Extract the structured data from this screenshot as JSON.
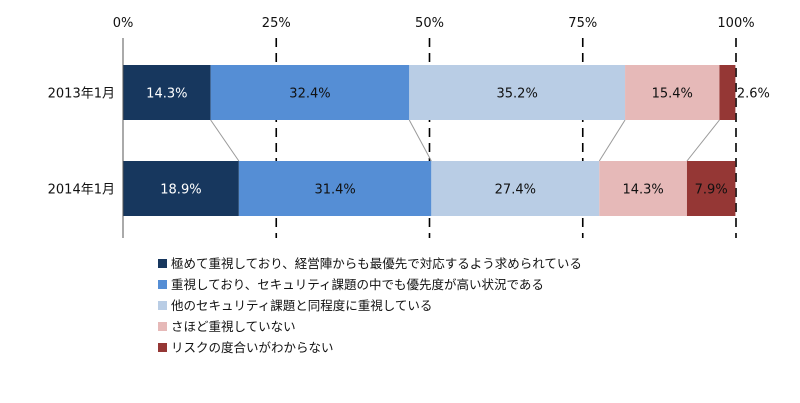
{
  "chart_data": {
    "type": "bar",
    "orientation": "horizontal",
    "stacked": true,
    "percent_stacked": true,
    "xlim": [
      0,
      100
    ],
    "x_ticks": [
      "0%",
      "25%",
      "50%",
      "75%",
      "100%"
    ],
    "grid": "dashed vertical",
    "legend_position": "bottom",
    "categories": [
      "2013年1月",
      "2014年1月"
    ],
    "series": [
      {
        "name": "極めて重視しており、経営陣からも最優先で対応するよう求められている",
        "color": "#17375e",
        "label_color": "#ffffff",
        "values": [
          14.3,
          18.9
        ]
      },
      {
        "name": "重視しており、セキュリティ課題の中でも優先度が高い状況である",
        "color": "#558ed5",
        "label_color": "#111111",
        "values": [
          32.4,
          31.4
        ]
      },
      {
        "name": "他のセキュリティ課題と同程度に重視している",
        "color": "#b9cde5",
        "label_color": "#111111",
        "values": [
          35.2,
          27.4
        ]
      },
      {
        "name": "さほど重視していない",
        "color": "#e6b9b8",
        "label_color": "#111111",
        "values": [
          15.4,
          14.3
        ]
      },
      {
        "name": "リスクの度合いがわからない",
        "color": "#953735",
        "label_color": "#111111",
        "values": [
          2.6,
          7.9
        ]
      }
    ],
    "data_labels": [
      [
        "14.3%",
        "32.4%",
        "35.2%",
        "15.4%",
        "2.6%"
      ],
      [
        "18.9%",
        "31.4%",
        "27.4%",
        "14.3%",
        "7.9%"
      ]
    ]
  }
}
